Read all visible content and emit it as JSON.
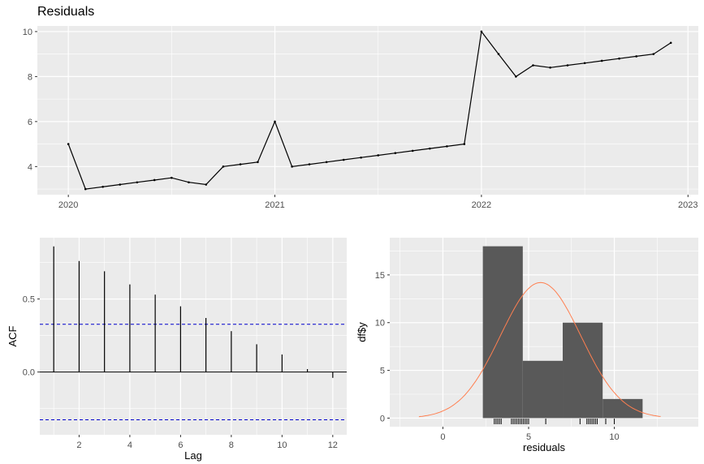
{
  "chart_data": [
    {
      "type": "line",
      "title": "Residuals",
      "xlabel": "",
      "ylabel": "",
      "x_ticks": [
        "2020",
        "2021",
        "2022",
        "2023"
      ],
      "y_ticks": [
        "4",
        "6",
        "8",
        "10"
      ],
      "ylim": [
        2.75,
        10.25
      ],
      "xlim": [
        2019.85,
        2023.05
      ],
      "grid": true,
      "x": [
        2020.0,
        2020.083,
        2020.167,
        2020.25,
        2020.333,
        2020.417,
        2020.5,
        2020.583,
        2020.667,
        2020.75,
        2020.833,
        2020.917,
        2021.0,
        2021.083,
        2021.167,
        2021.25,
        2021.333,
        2021.417,
        2021.5,
        2021.583,
        2021.667,
        2021.75,
        2021.833,
        2021.917,
        2022.0,
        2022.083,
        2022.167,
        2022.25,
        2022.333,
        2022.417,
        2022.5,
        2022.583,
        2022.667,
        2022.75,
        2022.833,
        2022.917
      ],
      "values": [
        5.0,
        3.0,
        3.1,
        3.2,
        3.3,
        3.4,
        3.5,
        3.3,
        3.2,
        4.0,
        4.1,
        4.2,
        6.0,
        4.0,
        4.1,
        4.2,
        4.3,
        4.4,
        4.5,
        4.6,
        4.7,
        4.8,
        4.9,
        5.0,
        10.0,
        9.0,
        8.0,
        8.5,
        8.4,
        8.5,
        8.6,
        8.7,
        8.8,
        8.9,
        9.0,
        9.5
      ]
    },
    {
      "type": "bar",
      "title": "",
      "xlabel": "Lag",
      "ylabel": "ACF",
      "categories": [
        1,
        2,
        3,
        4,
        5,
        6,
        7,
        8,
        9,
        10,
        11,
        12
      ],
      "values": [
        0.86,
        0.76,
        0.69,
        0.6,
        0.53,
        0.45,
        0.37,
        0.28,
        0.19,
        0.12,
        0.02,
        -0.04
      ],
      "confidence_bounds": [
        0.327,
        -0.327
      ],
      "x_ticks": [
        "2",
        "4",
        "6",
        "8",
        "10",
        "12"
      ],
      "y_ticks": [
        "0.0",
        "0.5"
      ],
      "ylim": [
        -0.43,
        0.92
      ],
      "xlim": [
        0.45,
        12.55
      ],
      "grid": true
    },
    {
      "type": "bar",
      "subtype": "histogram",
      "title": "",
      "xlabel": "residuals",
      "ylabel": "df$y",
      "bins": [
        [
          2.33,
          4.66
        ],
        [
          4.66,
          6.99
        ],
        [
          6.99,
          9.32
        ],
        [
          9.32,
          11.65
        ]
      ],
      "values": [
        18,
        6,
        10,
        2
      ],
      "normal_curve": {
        "mean": 5.7,
        "peak": 14.2,
        "sd": 2.35,
        "range": [
          -1.4,
          12.7
        ],
        "color": "#FF7F50"
      },
      "rug": [
        3.0,
        3.1,
        3.2,
        3.3,
        3.4,
        4.0,
        4.1,
        4.2,
        4.3,
        4.4,
        4.5,
        4.6,
        4.7,
        4.8,
        4.9,
        5.0,
        6.0,
        8.0,
        8.4,
        8.5,
        8.6,
        8.7,
        8.8,
        8.9,
        9.0,
        9.5,
        10.0
      ],
      "x_ticks": [
        "0",
        "5",
        "10"
      ],
      "y_ticks": [
        "0",
        "5",
        "10",
        "15"
      ],
      "xlim": [
        -3.1,
        14.9
      ],
      "ylim": [
        -0.9,
        18.9
      ],
      "grid": true
    }
  ],
  "colors": {
    "panel_bg": "#EBEBEB",
    "grid": "#FFFFFF",
    "line": "#000000",
    "bar_fill": "#595959",
    "ci_line": "#0000CC",
    "curve": "#FF7F50",
    "tick_label": "#4D4D4D"
  }
}
